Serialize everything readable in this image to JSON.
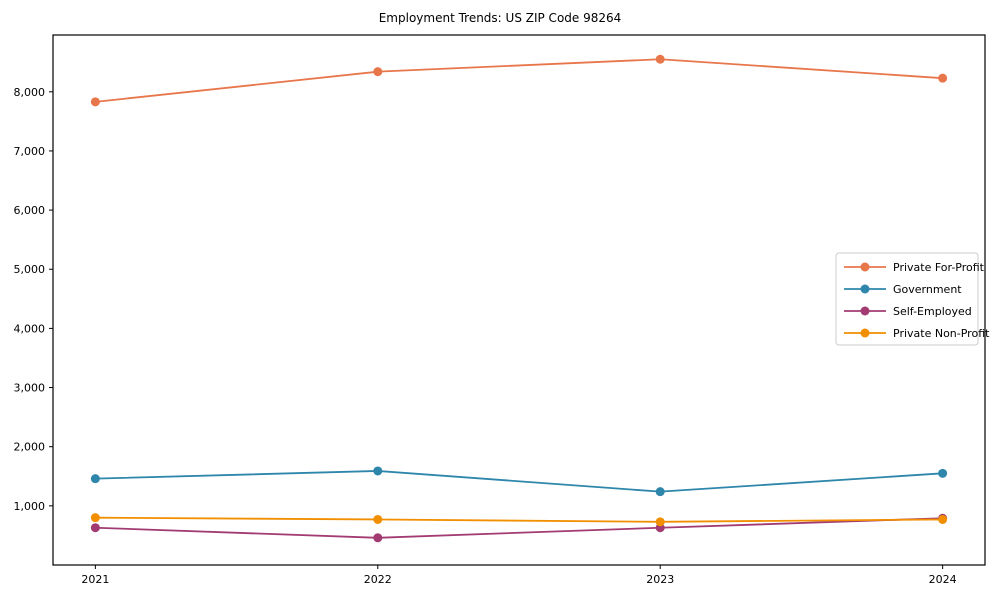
{
  "chart_data": {
    "type": "line",
    "title": "Employment Trends: US ZIP Code 98264",
    "xlabel": "",
    "ylabel": "",
    "x": [
      2021,
      2022,
      2023,
      2024
    ],
    "categories": [
      "2021",
      "2022",
      "2023",
      "2024"
    ],
    "series": [
      {
        "name": "Private For-Profit",
        "color": "#E8764B",
        "values": [
          7830,
          8340,
          8550,
          8230
        ]
      },
      {
        "name": "Government",
        "color": "#2E86AB",
        "values": [
          1460,
          1590,
          1240,
          1550
        ]
      },
      {
        "name": "Self-Employed",
        "color": "#A23B72",
        "values": [
          630,
          460,
          630,
          790
        ]
      },
      {
        "name": "Private Non-Profit",
        "color": "#F18F01",
        "values": [
          800,
          770,
          730,
          770
        ]
      }
    ],
    "xlim": [
      2020.85,
      2024.15
    ],
    "ylim": [
      0,
      8960
    ],
    "xticks": [
      2021,
      2022,
      2023,
      2024
    ],
    "xtick_labels": [
      "2021",
      "2022",
      "2023",
      "2024"
    ],
    "yticks": [
      1000,
      2000,
      3000,
      4000,
      5000,
      6000,
      7000,
      8000
    ],
    "ytick_labels": [
      "1,000",
      "2,000",
      "3,000",
      "4,000",
      "5,000",
      "6,000",
      "7,000",
      "8,000"
    ],
    "grid": false,
    "legend_position": "center right",
    "axis_color": "#000000",
    "background_color": "#ffffff",
    "legend_border_color": "#cccccc"
  }
}
